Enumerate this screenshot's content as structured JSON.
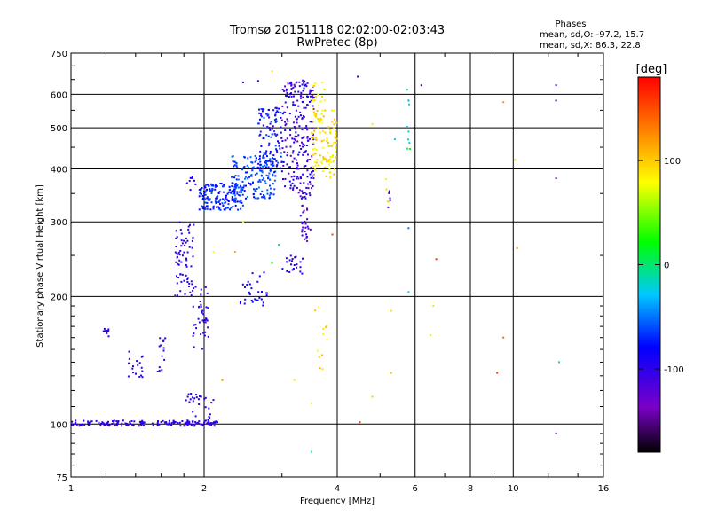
{
  "title_line1": "Tromsø 20151118 02:02:00-02:03:43",
  "title_line2": "RwPretec (8p)",
  "stats": {
    "header": "Phases",
    "o_line": "mean, sd,O: -97.2, 15.7",
    "x_line": "mean, sd,X: 86.3, 22.8"
  },
  "colorbar": {
    "label": "[deg]",
    "range": [
      -180,
      180
    ],
    "ticks": [
      {
        "value": 100,
        "label": "100"
      },
      {
        "value": 0,
        "label": "0"
      },
      {
        "value": -100,
        "label": "-100"
      }
    ]
  },
  "chart_data": {
    "type": "scatter",
    "xlabel": "Frequency [MHz]",
    "ylabel": "Stationary phase Virtual Height [km]",
    "xscale": "log",
    "yscale": "log",
    "xlim": [
      1,
      16
    ],
    "ylim": [
      75,
      750
    ],
    "grid": true,
    "xticks": [
      {
        "value": 1,
        "label": "1"
      },
      {
        "value": 2,
        "label": "2"
      },
      {
        "value": 4,
        "label": "4"
      },
      {
        "value": 6,
        "label": "6"
      },
      {
        "value": 8,
        "label": "8"
      },
      {
        "value": 10,
        "label": "10"
      },
      {
        "value": 16,
        "label": "16"
      }
    ],
    "yticks": [
      {
        "value": 75,
        "label": "75"
      },
      {
        "value": 100,
        "label": "100"
      },
      {
        "value": 200,
        "label": "200"
      },
      {
        "value": 300,
        "label": "300"
      },
      {
        "value": 400,
        "label": "400"
      },
      {
        "value": 500,
        "label": "500"
      },
      {
        "value": 600,
        "label": "600"
      },
      {
        "value": 750,
        "label": "750"
      }
    ],
    "clusters": [
      {
        "f": [
          1.0,
          2.15
        ],
        "h": [
          99,
          102
        ],
        "phase": [
          -110,
          -95
        ],
        "n": 170
      },
      {
        "f": [
          1.88,
          2.1
        ],
        "h": [
          102,
          118
        ],
        "phase": [
          -110,
          -95
        ],
        "n": 18
      },
      {
        "f": [
          1.82,
          1.92
        ],
        "h": [
          112,
          118
        ],
        "phase": [
          -100,
          -90
        ],
        "n": 10
      },
      {
        "f": [
          1.18,
          1.22
        ],
        "h": [
          161,
          168
        ],
        "phase": [
          -100,
          -90
        ],
        "n": 8
      },
      {
        "f": [
          1.34,
          1.46
        ],
        "h": [
          128,
          150
        ],
        "phase": [
          -110,
          -90
        ],
        "n": 18
      },
      {
        "f": [
          1.57,
          1.64
        ],
        "h": [
          133,
          165
        ],
        "phase": [
          -110,
          -95
        ],
        "n": 14
      },
      {
        "f": [
          1.72,
          1.9
        ],
        "h": [
          200,
          300
        ],
        "phase": [
          -110,
          -90
        ],
        "n": 70
      },
      {
        "f": [
          1.88,
          2.05
        ],
        "h": [
          150,
          215
        ],
        "phase": [
          -110,
          -95
        ],
        "n": 40
      },
      {
        "f": [
          1.83,
          1.92
        ],
        "h": [
          355,
          385
        ],
        "phase": [
          -100,
          -90
        ],
        "n": 8
      },
      {
        "f": [
          1.95,
          2.45
        ],
        "h": [
          320,
          370
        ],
        "phase": [
          -90,
          -55
        ],
        "n": 170
      },
      {
        "f": [
          2.3,
          2.9
        ],
        "h": [
          340,
          430
        ],
        "phase": [
          -80,
          -45
        ],
        "n": 170
      },
      {
        "f": [
          2.65,
          3.0
        ],
        "h": [
          400,
          560
        ],
        "phase": [
          -110,
          -55
        ],
        "n": 110
      },
      {
        "f": [
          3.0,
          3.55
        ],
        "h": [
          340,
          650
        ],
        "phase": [
          -130,
          -80
        ],
        "n": 240
      },
      {
        "f": [
          3.3,
          3.5
        ],
        "h": [
          270,
          330
        ],
        "phase": [
          -130,
          -100
        ],
        "n": 26
      },
      {
        "f": [
          3.5,
          4.0
        ],
        "h": [
          380,
          550
        ],
        "phase": [
          70,
          110
        ],
        "n": 110
      },
      {
        "f": [
          3.5,
          3.75
        ],
        "h": [
          520,
          640
        ],
        "phase": [
          70,
          105
        ],
        "n": 22
      },
      {
        "f": [
          3.0,
          3.35
        ],
        "h": [
          225,
          250
        ],
        "phase": [
          -110,
          -90
        ],
        "n": 22
      },
      {
        "f": [
          2.4,
          2.8
        ],
        "h": [
          190,
          230
        ],
        "phase": [
          -100,
          -80
        ],
        "n": 32
      },
      {
        "f": [
          3.55,
          3.85
        ],
        "h": [
          120,
          200
        ],
        "phase": [
          80,
          110
        ],
        "n": 12
      },
      {
        "f": [
          5.75,
          5.85
        ],
        "h": [
          420,
          650
        ],
        "phase": [
          -30,
          30
        ],
        "n": 7
      },
      {
        "f": [
          5.15,
          5.25
        ],
        "h": [
          330,
          380
        ],
        "phase": [
          80,
          110
        ],
        "n": 5
      },
      {
        "f": [
          5.2,
          5.3
        ],
        "h": [
          315,
          360
        ],
        "phase": [
          -110,
          -90
        ],
        "n": 5
      }
    ],
    "isolated_points": [
      {
        "f": 2.45,
        "h": 640,
        "phase": -100
      },
      {
        "f": 2.65,
        "h": 645,
        "phase": -100
      },
      {
        "f": 2.85,
        "h": 680,
        "phase": 90
      },
      {
        "f": 4.45,
        "h": 660,
        "phase": -100
      },
      {
        "f": 6.2,
        "h": 630,
        "phase": -150
      },
      {
        "f": 12.5,
        "h": 630,
        "phase": -120
      },
      {
        "f": 12.5,
        "h": 580,
        "phase": -160
      },
      {
        "f": 9.5,
        "h": 575,
        "phase": 120
      },
      {
        "f": 5.8,
        "h": 580,
        "phase": -40
      },
      {
        "f": 4.8,
        "h": 510,
        "phase": 90
      },
      {
        "f": 5.8,
        "h": 490,
        "phase": -20
      },
      {
        "f": 5.4,
        "h": 470,
        "phase": -20
      },
      {
        "f": 10.1,
        "h": 420,
        "phase": 100
      },
      {
        "f": 12.5,
        "h": 380,
        "phase": -150
      },
      {
        "f": 5.8,
        "h": 290,
        "phase": -50
      },
      {
        "f": 6.7,
        "h": 245,
        "phase": 160
      },
      {
        "f": 10.2,
        "h": 260,
        "phase": 120
      },
      {
        "f": 2.1,
        "h": 255,
        "phase": 80
      },
      {
        "f": 2.35,
        "h": 255,
        "phase": 110
      },
      {
        "f": 2.95,
        "h": 265,
        "phase": -10
      },
      {
        "f": 2.85,
        "h": 240,
        "phase": 20
      },
      {
        "f": 3.9,
        "h": 280,
        "phase": 160
      },
      {
        "f": 5.8,
        "h": 205,
        "phase": -30
      },
      {
        "f": 5.3,
        "h": 185,
        "phase": 90
      },
      {
        "f": 6.6,
        "h": 190,
        "phase": 90
      },
      {
        "f": 6.5,
        "h": 162,
        "phase": 90
      },
      {
        "f": 9.5,
        "h": 160,
        "phase": 140
      },
      {
        "f": 12.7,
        "h": 140,
        "phase": -20
      },
      {
        "f": 9.2,
        "h": 132,
        "phase": 160
      },
      {
        "f": 5.3,
        "h": 132,
        "phase": 100
      },
      {
        "f": 4.8,
        "h": 116,
        "phase": 100
      },
      {
        "f": 3.5,
        "h": 112,
        "phase": 60
      },
      {
        "f": 3.2,
        "h": 127,
        "phase": 90
      },
      {
        "f": 4.5,
        "h": 101,
        "phase": 160
      },
      {
        "f": 12.5,
        "h": 95,
        "phase": -150
      },
      {
        "f": 3.5,
        "h": 86,
        "phase": 0
      },
      {
        "f": 2.2,
        "h": 127,
        "phase": 120
      },
      {
        "f": 2.45,
        "h": 300,
        "phase": 80
      }
    ]
  }
}
